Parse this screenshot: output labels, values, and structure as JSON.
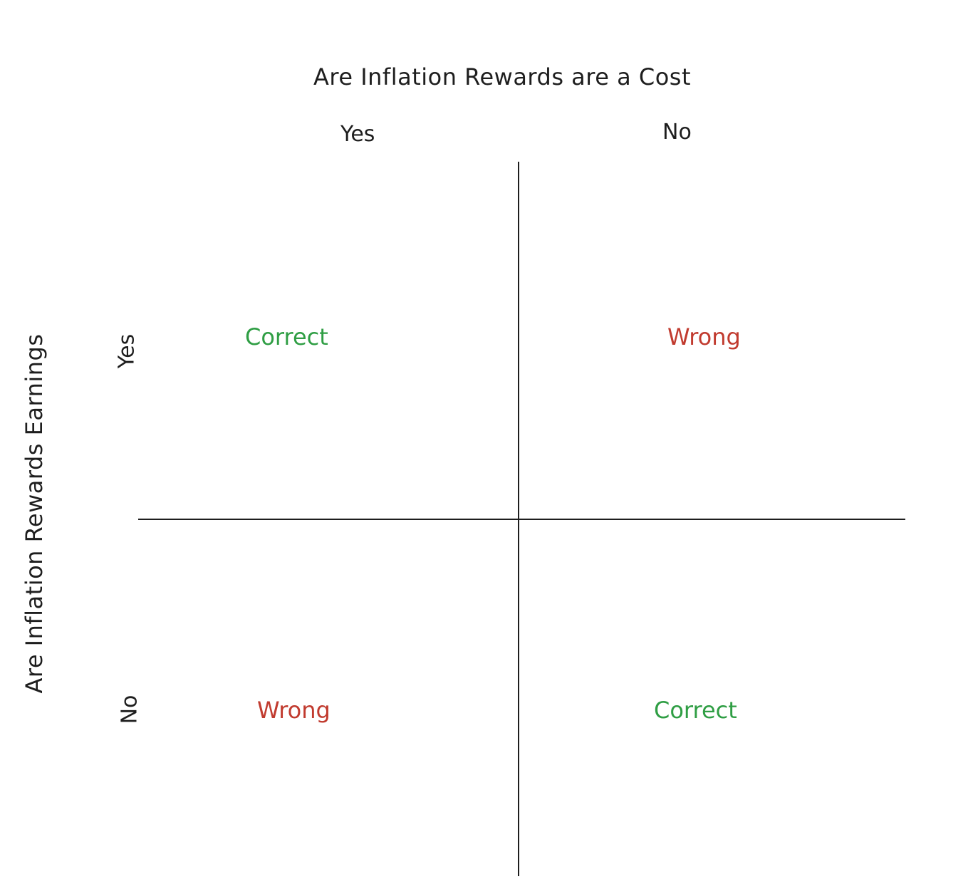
{
  "diagram": {
    "column_axis_title": "Are Inflation Rewards are a Cost",
    "row_axis_title": "Are Inflation Rewards Earnings",
    "columns": [
      "Yes",
      "No"
    ],
    "rows": [
      "Yes",
      "No"
    ],
    "cells": {
      "top_left": "Correct",
      "top_right": "Wrong",
      "bottom_left": "Wrong",
      "bottom_right": "Correct"
    },
    "colors": {
      "correct": "#2f9e44",
      "wrong": "#c13b2f",
      "line": "#1e1e1e"
    }
  }
}
